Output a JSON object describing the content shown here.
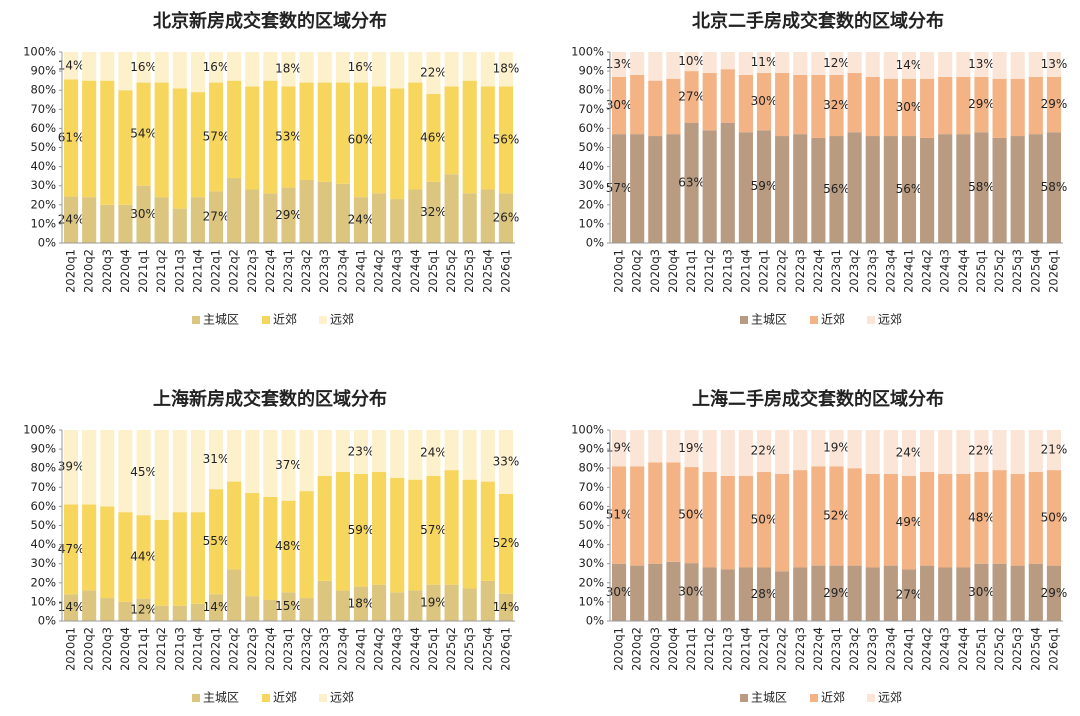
{
  "chart_data": [
    {
      "type": "bar",
      "stacked": true,
      "title": "北京新房成交套数的区域分布",
      "categories": [
        "2020q1",
        "2020q2",
        "2020q3",
        "2020q4",
        "2021q1",
        "2021q2",
        "2021q3",
        "2021q4",
        "2022q1",
        "2022q2",
        "2022q3",
        "2022q4",
        "2023q1",
        "2023q2",
        "2023q3",
        "2023q4",
        "2024q1",
        "2024q2",
        "2024q3",
        "2024q4",
        "2025q1",
        "2025q2",
        "2025q3",
        "2025q4",
        "2026q1"
      ],
      "ylim": [
        0,
        100
      ],
      "yticks": [
        {
          "value": 0,
          "label": "0%"
        },
        {
          "value": 10,
          "label": "10%"
        },
        {
          "value": 20,
          "label": "20%"
        },
        {
          "value": 30,
          "label": "30%"
        },
        {
          "value": 40,
          "label": "40%"
        },
        {
          "value": 50,
          "label": "50%"
        },
        {
          "value": 60,
          "label": "60%"
        },
        {
          "value": 70,
          "label": "70%"
        },
        {
          "value": 80,
          "label": "80%"
        },
        {
          "value": 90,
          "label": "90%"
        },
        {
          "value": 100,
          "label": "100%"
        }
      ],
      "legend": "bottom",
      "series": [
        {
          "name": "主城区",
          "color": "#dcc57e",
          "values": [
            24.3,
            24,
            20,
            20,
            30,
            24,
            18,
            24,
            27,
            34,
            28,
            26,
            29,
            33,
            32,
            31,
            24,
            26,
            23,
            28,
            32,
            36,
            26,
            28,
            26
          ],
          "value_labels": [
            "24%",
            null,
            null,
            null,
            "30%",
            null,
            null,
            null,
            "27%",
            null,
            null,
            null,
            "29%",
            null,
            null,
            null,
            "24%",
            null,
            null,
            null,
            "32%",
            null,
            null,
            null,
            "26%"
          ]
        },
        {
          "name": "近郊",
          "color": "#f7d65e",
          "values": [
            61.3,
            61,
            65,
            60,
            54,
            60,
            63,
            55,
            57,
            51,
            54,
            59,
            53,
            51,
            52,
            53,
            60,
            56,
            58,
            56,
            46,
            46,
            59,
            54,
            56
          ],
          "value_labels": [
            "61%",
            null,
            null,
            null,
            "54%",
            null,
            null,
            null,
            "57%",
            null,
            null,
            null,
            "53%",
            null,
            null,
            null,
            "60%",
            null,
            null,
            null,
            "46%",
            null,
            null,
            null,
            "56%"
          ]
        },
        {
          "name": "远郊",
          "color": "#fdf1cc",
          "values": [
            14.4,
            15,
            15,
            20,
            16,
            16,
            19,
            21,
            16,
            15,
            18,
            15,
            18,
            16,
            16,
            16,
            16,
            18,
            19,
            16,
            22,
            18,
            15,
            18,
            18
          ],
          "value_labels": [
            "14%",
            null,
            null,
            null,
            "16%",
            null,
            null,
            null,
            "16%",
            null,
            null,
            null,
            "18%",
            null,
            null,
            null,
            "16%",
            null,
            null,
            null,
            "22%",
            null,
            null,
            null,
            "18%"
          ]
        }
      ]
    },
    {
      "type": "bar",
      "stacked": true,
      "title": "北京二手房成交套数的区域分布",
      "categories": [
        "2020q1",
        "2020q2",
        "2020q3",
        "2020q4",
        "2021q1",
        "2021q2",
        "2021q3",
        "2021q4",
        "2022q1",
        "2022q2",
        "2022q3",
        "2022q4",
        "2023q1",
        "2023q2",
        "2023q3",
        "2023q4",
        "2024q1",
        "2024q2",
        "2024q3",
        "2024q4",
        "2025q1",
        "2025q2",
        "2025q3",
        "2025q4",
        "2026q1"
      ],
      "ylim": [
        0,
        100
      ],
      "yticks": [
        {
          "value": 0,
          "label": "0%"
        },
        {
          "value": 10,
          "label": "10%"
        },
        {
          "value": 20,
          "label": "20%"
        },
        {
          "value": 30,
          "label": "30%"
        },
        {
          "value": 40,
          "label": "40%"
        },
        {
          "value": 50,
          "label": "50%"
        },
        {
          "value": 60,
          "label": "60%"
        },
        {
          "value": 70,
          "label": "70%"
        },
        {
          "value": 80,
          "label": "80%"
        },
        {
          "value": 90,
          "label": "90%"
        },
        {
          "value": 100,
          "label": "100%"
        }
      ],
      "legend": "bottom",
      "series": [
        {
          "name": "主城区",
          "color": "#b99b82",
          "values": [
            57,
            57,
            56,
            57,
            63,
            59,
            63,
            58,
            59,
            56,
            57,
            55,
            56,
            58,
            56,
            56,
            56,
            55,
            57,
            57,
            58,
            55,
            56,
            57,
            58
          ],
          "value_labels": [
            "57%",
            null,
            null,
            null,
            "63%",
            null,
            null,
            null,
            "59%",
            null,
            null,
            null,
            "56%",
            null,
            null,
            null,
            "56%",
            null,
            null,
            null,
            "58%",
            null,
            null,
            null,
            "58%"
          ]
        },
        {
          "name": "近郊",
          "color": "#f4b385",
          "values": [
            30,
            31,
            29,
            29,
            27,
            30,
            28,
            30,
            30,
            33,
            31,
            33,
            32,
            31,
            31,
            30,
            30,
            31,
            30,
            30,
            29,
            31,
            30,
            30,
            29
          ],
          "value_labels": [
            "30%",
            null,
            null,
            null,
            "27%",
            null,
            null,
            null,
            "30%",
            null,
            null,
            null,
            "32%",
            null,
            null,
            null,
            "30%",
            null,
            null,
            null,
            "29%",
            null,
            null,
            null,
            "29%"
          ]
        },
        {
          "name": "远郊",
          "color": "#fbe5d7",
          "values": [
            13,
            12,
            15,
            14,
            10,
            11,
            9,
            12,
            11,
            11,
            12,
            12,
            12,
            11,
            13,
            14,
            14,
            14,
            13,
            13,
            13,
            14,
            14,
            13,
            13
          ],
          "value_labels": [
            "13%",
            null,
            null,
            null,
            "10%",
            null,
            null,
            null,
            "11%",
            null,
            null,
            null,
            "12%",
            null,
            null,
            null,
            "14%",
            null,
            null,
            null,
            "13%",
            null,
            null,
            null,
            "13%"
          ]
        }
      ]
    },
    {
      "type": "bar",
      "stacked": true,
      "title": "上海新房成交套数的区域分布",
      "categories": [
        "2020q1",
        "2020q2",
        "2020q3",
        "2020q4",
        "2021q1",
        "2021q2",
        "2021q3",
        "2021q4",
        "2022q1",
        "2022q2",
        "2022q3",
        "2022q4",
        "2023q1",
        "2023q2",
        "2023q3",
        "2023q4",
        "2024q1",
        "2024q2",
        "2024q3",
        "2024q4",
        "2025q1",
        "2025q2",
        "2025q3",
        "2025q4",
        "2026q1"
      ],
      "ylim": [
        0,
        100
      ],
      "yticks": [
        {
          "value": 0,
          "label": "0%"
        },
        {
          "value": 10,
          "label": "10%"
        },
        {
          "value": 20,
          "label": "20%"
        },
        {
          "value": 30,
          "label": "30%"
        },
        {
          "value": 40,
          "label": "40%"
        },
        {
          "value": 50,
          "label": "50%"
        },
        {
          "value": 60,
          "label": "60%"
        },
        {
          "value": 70,
          "label": "70%"
        },
        {
          "value": 80,
          "label": "80%"
        },
        {
          "value": 90,
          "label": "90%"
        },
        {
          "value": 100,
          "label": "100%"
        }
      ],
      "legend": "bottom",
      "series": [
        {
          "name": "主城区",
          "color": "#dcc57e",
          "values": [
            14,
            16,
            12,
            10,
            11.7,
            8,
            8,
            9,
            14,
            27,
            13,
            11,
            15,
            12,
            21,
            16,
            18,
            19,
            15,
            16,
            19,
            19,
            17,
            21,
            14.3
          ],
          "value_labels": [
            "14%",
            null,
            null,
            null,
            "12%",
            null,
            null,
            null,
            "14%",
            null,
            null,
            null,
            "15%",
            null,
            null,
            null,
            "18%",
            null,
            null,
            null,
            "19%",
            null,
            null,
            null,
            "14%"
          ]
        },
        {
          "name": "近郊",
          "color": "#f7d65e",
          "values": [
            47,
            45,
            48,
            47,
            43.7,
            45,
            49,
            48,
            55,
            46,
            54,
            54,
            48,
            56,
            55,
            62,
            59,
            59,
            60,
            58,
            57,
            60,
            57,
            52,
            52.3
          ],
          "value_labels": [
            "47%",
            null,
            null,
            null,
            "44%",
            null,
            null,
            null,
            "55%",
            null,
            null,
            null,
            "48%",
            null,
            null,
            null,
            "59%",
            null,
            null,
            null,
            "57%",
            null,
            null,
            null,
            "52%"
          ]
        },
        {
          "name": "远郊",
          "color": "#fdf1cc",
          "values": [
            39,
            39,
            40,
            43,
            44.6,
            47,
            43,
            43,
            31,
            27,
            33,
            35,
            37,
            32,
            24,
            22,
            23,
            22,
            25,
            26,
            24,
            21,
            26,
            27,
            33.4
          ],
          "value_labels": [
            "39%",
            null,
            null,
            null,
            "45%",
            null,
            null,
            null,
            "31%",
            null,
            null,
            null,
            "37%",
            null,
            null,
            null,
            "23%",
            null,
            null,
            null,
            "24%",
            null,
            null,
            null,
            "33%"
          ]
        }
      ]
    },
    {
      "type": "bar",
      "stacked": true,
      "title": "上海二手房成交套数的区域分布",
      "categories": [
        "2020q1",
        "2020q2",
        "2020q3",
        "2020q4",
        "2021q1",
        "2021q2",
        "2021q3",
        "2021q4",
        "2022q1",
        "2022q2",
        "2022q3",
        "2022q4",
        "2023q1",
        "2023q2",
        "2023q3",
        "2023q4",
        "2024q1",
        "2024q2",
        "2024q3",
        "2024q4",
        "2025q1",
        "2025q2",
        "2025q3",
        "2025q4",
        "2026q1"
      ],
      "ylim": [
        0,
        100
      ],
      "yticks": [
        {
          "value": 0,
          "label": "0%"
        },
        {
          "value": 10,
          "label": "10%"
        },
        {
          "value": 20,
          "label": "20%"
        },
        {
          "value": 30,
          "label": "30%"
        },
        {
          "value": 40,
          "label": "40%"
        },
        {
          "value": 50,
          "label": "50%"
        },
        {
          "value": 60,
          "label": "60%"
        },
        {
          "value": 70,
          "label": "70%"
        },
        {
          "value": 80,
          "label": "80%"
        },
        {
          "value": 90,
          "label": "90%"
        },
        {
          "value": 100,
          "label": "100%"
        }
      ],
      "legend": "bottom",
      "series": [
        {
          "name": "主城区",
          "color": "#b99b82",
          "values": [
            30,
            29,
            30,
            31,
            30.3,
            28,
            27,
            28,
            28,
            26,
            28,
            29,
            29,
            29,
            28,
            29,
            27,
            29,
            28,
            28,
            30,
            30,
            29,
            30,
            29
          ],
          "value_labels": [
            "30%",
            null,
            null,
            null,
            "30%",
            null,
            null,
            null,
            "28%",
            null,
            null,
            null,
            "29%",
            null,
            null,
            null,
            "27%",
            null,
            null,
            null,
            "30%",
            null,
            null,
            null,
            "29%"
          ]
        },
        {
          "name": "近郊",
          "color": "#f4b385",
          "values": [
            51,
            52,
            53,
            52,
            50.3,
            50,
            49,
            48,
            50,
            51,
            51,
            52,
            52,
            51,
            49,
            48,
            49,
            49,
            49,
            49,
            48,
            49,
            48,
            48,
            50
          ],
          "value_labels": [
            "51%",
            null,
            null,
            null,
            "50%",
            null,
            null,
            null,
            "50%",
            null,
            null,
            null,
            "52%",
            null,
            null,
            null,
            "49%",
            null,
            null,
            null,
            "48%",
            null,
            null,
            null,
            "50%"
          ]
        },
        {
          "name": "远郊",
          "color": "#fbe5d7",
          "values": [
            19,
            19,
            17,
            17,
            19.4,
            22,
            24,
            24,
            22,
            23,
            21,
            19,
            19,
            20,
            23,
            23,
            24,
            22,
            23,
            23,
            22,
            21,
            23,
            22,
            21
          ],
          "value_labels": [
            "19%",
            null,
            null,
            null,
            "19%",
            null,
            null,
            null,
            "22%",
            null,
            null,
            null,
            "19%",
            null,
            null,
            null,
            "24%",
            null,
            null,
            null,
            "22%",
            null,
            null,
            null,
            "21%"
          ]
        }
      ]
    }
  ]
}
